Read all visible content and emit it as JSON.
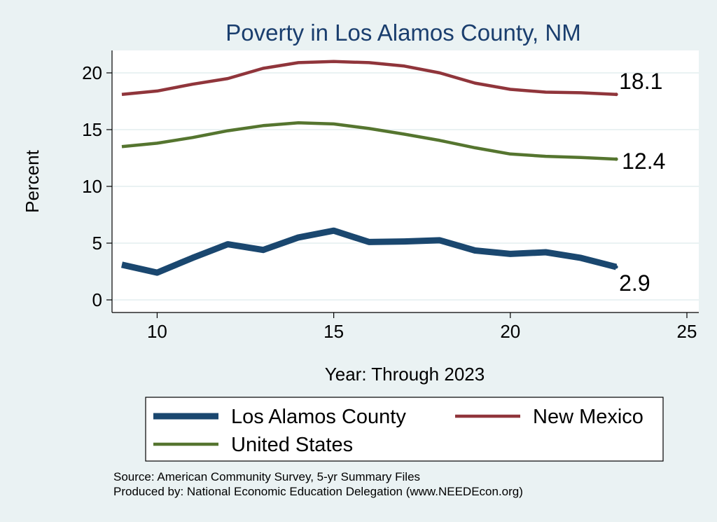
{
  "chart_data": {
    "type": "line",
    "title": "Poverty in Los Alamos County, NM",
    "xlabel": "Year: Through 2023",
    "ylabel": "Percent",
    "xlim": [
      9,
      25
    ],
    "ylim": [
      0,
      22
    ],
    "x_ticks": [
      10,
      15,
      20,
      25
    ],
    "y_ticks": [
      0,
      5,
      10,
      15,
      20
    ],
    "grid": true,
    "legend_position": "bottom",
    "x": [
      9,
      10,
      11,
      12,
      13,
      14,
      15,
      16,
      17,
      18,
      19,
      20,
      21,
      22,
      23
    ],
    "series": [
      {
        "name": "Los Alamos County",
        "color": "#1a476f",
        "values": [
          3.1,
          2.4,
          3.7,
          4.9,
          4.4,
          5.5,
          6.1,
          5.1,
          5.15,
          5.25,
          4.35,
          4.05,
          4.2,
          3.7,
          2.9
        ],
        "end_label": "2.9"
      },
      {
        "name": "New Mexico",
        "color": "#90353b",
        "values": [
          18.1,
          18.4,
          19.0,
          19.5,
          20.4,
          20.9,
          21.0,
          20.9,
          20.6,
          20.0,
          19.1,
          18.55,
          18.3,
          18.25,
          18.1
        ],
        "end_label": "18.1"
      },
      {
        "name": "United States",
        "color": "#55752f",
        "values": [
          13.5,
          13.8,
          14.3,
          14.9,
          15.35,
          15.6,
          15.5,
          15.1,
          14.6,
          14.05,
          13.4,
          12.85,
          12.65,
          12.55,
          12.4
        ],
        "end_label": "12.4"
      }
    ]
  },
  "notes": {
    "source": "Source: American Community Survey, 5-yr Summary Files",
    "produced_by": "Produced by: National Economic Education Delegation (www.NEEDEcon.org)"
  }
}
